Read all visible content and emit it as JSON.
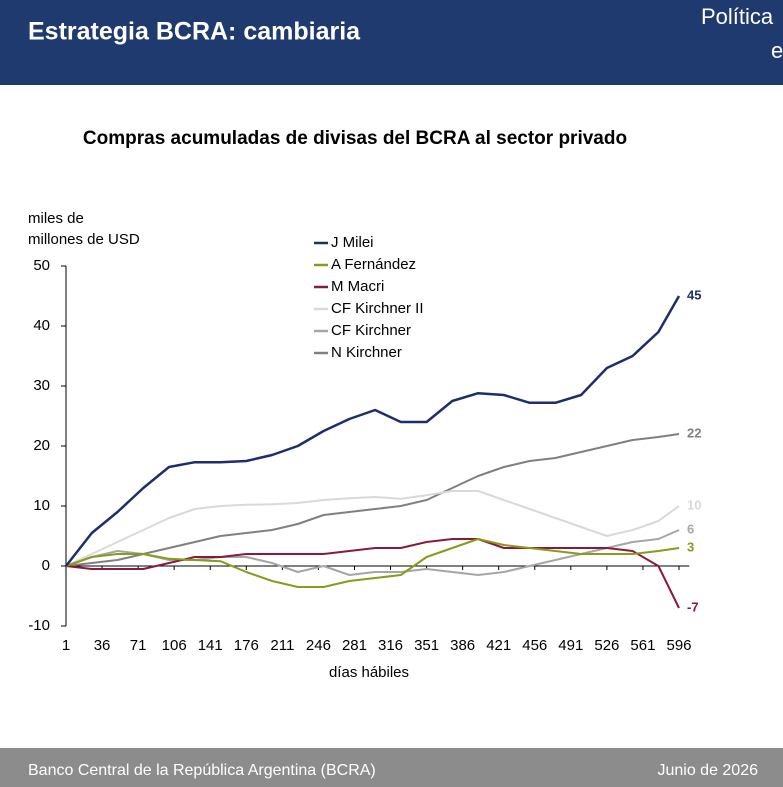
{
  "header": {
    "title": "Estrategia BCRA: cambiaria",
    "right_lines": [
      "Política",
      "e"
    ]
  },
  "footer": {
    "left": "Banco Central de la República Argentina (BCRA)",
    "right": "Junio de 2026"
  },
  "chart_data": {
    "type": "line",
    "title": "Compras acumuladas de divisas del BCRA al sector privado",
    "y_label": [
      "miles de",
      "millones de USD"
    ],
    "x_label": "días hábiles",
    "x": [
      1,
      26,
      51,
      76,
      101,
      126,
      151,
      176,
      201,
      226,
      251,
      276,
      301,
      326,
      351,
      376,
      401,
      426,
      451,
      476,
      501,
      526,
      551,
      576,
      596
    ],
    "xlim": [
      1,
      606
    ],
    "xticks": [
      1,
      36,
      71,
      106,
      141,
      176,
      211,
      246,
      281,
      316,
      351,
      386,
      421,
      456,
      491,
      526,
      561,
      596
    ],
    "ylim": [
      -10,
      50
    ],
    "yticks": [
      -10,
      0,
      10,
      20,
      30,
      40,
      50
    ],
    "grid": false,
    "series": [
      {
        "name": "J Milei",
        "color": "#1f2d6b",
        "values": [
          0,
          5.5,
          9,
          13,
          16.5,
          17.3,
          17.3,
          17.5,
          18.5,
          20,
          22.5,
          24.5,
          26,
          24,
          24,
          27.5,
          28.8,
          28.5,
          27.2,
          27.2,
          28.5,
          33,
          35,
          39,
          45
        ]
      },
      {
        "name": "A Fernández",
        "color": "#8a9a1b",
        "values": [
          0,
          1.5,
          2,
          2,
          1.2,
          1,
          0.8,
          -1,
          -2.5,
          -3.5,
          -3.5,
          -2.5,
          -2,
          -1.5,
          1.5,
          3,
          4.5,
          3.5,
          3,
          2.5,
          2,
          2,
          2,
          2.5,
          3
        ]
      },
      {
        "name": "M Macri",
        "color": "#8b1a3a",
        "values": [
          0,
          -0.5,
          -0.5,
          -0.5,
          0.5,
          1.5,
          1.5,
          2,
          2,
          2,
          2,
          2.5,
          3,
          3,
          4,
          4.5,
          4.5,
          3,
          3,
          3,
          3,
          3,
          2.5,
          0,
          -7
        ]
      },
      {
        "name": "CF Kirchner II",
        "color": "#d9d9d9",
        "values": [
          0,
          2,
          4,
          6,
          8,
          9.5,
          10,
          10.2,
          10.3,
          10.5,
          11,
          11.3,
          11.5,
          11.2,
          11.8,
          12.5,
          12.5,
          11,
          9.5,
          8,
          6.5,
          5,
          6,
          7.5,
          10
        ]
      },
      {
        "name": "CF Kirchner",
        "color": "#a6a6a6",
        "values": [
          0,
          1.5,
          2.5,
          2,
          1,
          1,
          1.5,
          1.5,
          0.5,
          -1,
          0,
          -1.5,
          -1,
          -1,
          -0.5,
          -1,
          -1.5,
          -1,
          0,
          1,
          2,
          3,
          4,
          4.5,
          6
        ]
      },
      {
        "name": "N Kirchner",
        "color": "#808080",
        "values": [
          0,
          0.5,
          1,
          2,
          3,
          4,
          5,
          5.5,
          6,
          7,
          8.5,
          9,
          9.5,
          10,
          11,
          13,
          15,
          16.5,
          17.5,
          18,
          19,
          20,
          21,
          21.5,
          22
        ]
      }
    ]
  }
}
